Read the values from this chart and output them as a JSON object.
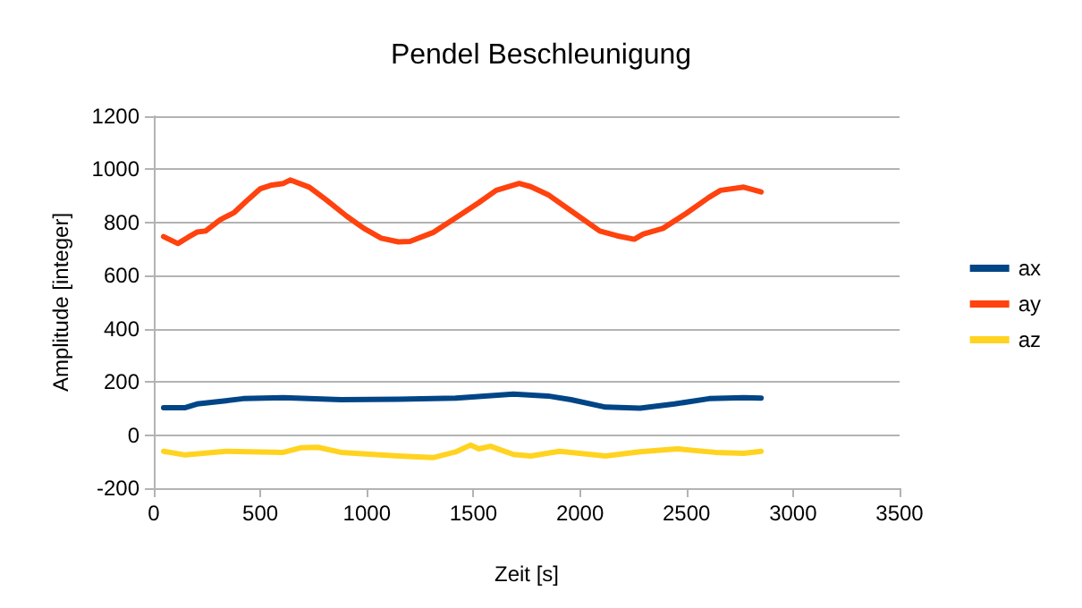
{
  "chart_data": {
    "type": "line",
    "title": "Pendel Beschleunigung",
    "xlabel": "Zeit [s]",
    "ylabel": "Amplitude [integer]",
    "xlim": [
      0,
      3500
    ],
    "xticks": [
      0,
      500,
      1000,
      1500,
      2000,
      2500,
      3000,
      3500
    ],
    "ylim": [
      -200,
      1200
    ],
    "yticks": [
      -200,
      0,
      200,
      400,
      600,
      800,
      1000,
      1200
    ],
    "grid": "y",
    "legend": "right",
    "marker": "none",
    "line_style": "solid",
    "series": [
      {
        "name": "ax",
        "color": "#004586",
        "x": [
          46,
          148,
          203,
          338,
          419,
          608,
          878,
          1148,
          1418,
          1688,
          1850,
          1958,
          2120,
          2282,
          2444,
          2606,
          2769,
          2850
        ],
        "values": [
          103,
          103,
          117,
          129,
          137,
          141,
          133,
          135,
          139,
          154,
          147,
          133,
          105,
          101,
          117,
          137,
          141,
          139
        ]
      },
      {
        "name": "ay",
        "color": "#ff420e",
        "x": [
          46,
          113,
          162,
          203,
          243,
          311,
          378,
          446,
          500,
          554,
          608,
          640,
          730,
          810,
          905,
          986,
          1067,
          1148,
          1202,
          1310,
          1418,
          1526,
          1607,
          1715,
          1769,
          1850,
          1958,
          2093,
          2174,
          2255,
          2296,
          2390,
          2498,
          2606,
          2660,
          2769,
          2850
        ],
        "values": [
          747,
          721,
          745,
          764,
          768,
          810,
          838,
          889,
          927,
          941,
          947,
          960,
          933,
          885,
          824,
          778,
          741,
          727,
          729,
          762,
          818,
          875,
          921,
          947,
          935,
          905,
          844,
          768,
          750,
          737,
          756,
          778,
          834,
          895,
          921,
          933,
          915
        ]
      },
      {
        "name": "az",
        "color": "#ffd320",
        "x": [
          46,
          148,
          338,
          608,
          689,
          770,
          878,
          1148,
          1310,
          1418,
          1486,
          1526,
          1580,
          1688,
          1769,
          1904,
          2120,
          2282,
          2458,
          2633,
          2769,
          2850
        ],
        "values": [
          -61,
          -75,
          -61,
          -65,
          -48,
          -46,
          -65,
          -79,
          -85,
          -63,
          -38,
          -52,
          -42,
          -73,
          -79,
          -61,
          -79,
          -63,
          -52,
          -65,
          -69,
          -61
        ]
      }
    ]
  }
}
